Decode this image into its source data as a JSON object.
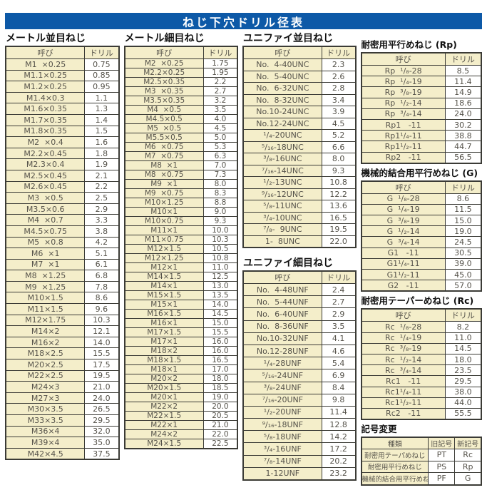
{
  "page_title": "ねじ下穴ドリル径表",
  "colors": {
    "title_bg": "#0d59a7",
    "title_text": "#ffffff",
    "cell_beige": "#f4eeca",
    "border": "#3b3b36"
  },
  "sections": {
    "metric_coarse": {
      "title": "メートル並目ねじ",
      "headers": [
        "呼び",
        "ドリル"
      ],
      "rows": [
        [
          "M1  ×0.25",
          "0.75"
        ],
        [
          "M1.1×0.25",
          "0.85"
        ],
        [
          "M1.2×0.25",
          "0.95"
        ],
        [
          "M1.4×0.3",
          "1.1"
        ],
        [
          "M1.6×0.35",
          "1.3"
        ],
        [
          "M1.7×0.35",
          "1.4"
        ],
        [
          "M1.8×0.35",
          "1.5"
        ],
        [
          "M2  ×0.4",
          "1.6"
        ],
        [
          "M2.2×0.45",
          "1.8"
        ],
        [
          "M2.3×0.4",
          "1.9"
        ],
        [
          "M2.5×0.45",
          "2.1"
        ],
        [
          "M2.6×0.45",
          "2.2"
        ],
        [
          "M3  ×0.5",
          "2.5"
        ],
        [
          "M3.5×0.6",
          "2.9"
        ],
        [
          "M4  ×0.7",
          "3.3"
        ],
        [
          "M4.5×0.75",
          "3.8"
        ],
        [
          "M5  ×0.8",
          "4.2"
        ],
        [
          "M6  ×1",
          "5.1"
        ],
        [
          "M7  ×1",
          "6.1"
        ],
        [
          "M8  ×1.25",
          "6.8"
        ],
        [
          "M9  ×1.25",
          "7.8"
        ],
        [
          "M10×1.5",
          "8.6"
        ],
        [
          "M11×1.5",
          "9.6"
        ],
        [
          "M12×1.75",
          "10.3"
        ],
        [
          "M14×2",
          "12.1"
        ],
        [
          "M16×2",
          "14.0"
        ],
        [
          "M18×2.5",
          "15.5"
        ],
        [
          "M20×2.5",
          "17.5"
        ],
        [
          "M22×2.5",
          "19.5"
        ],
        [
          "M24×3",
          "21.0"
        ],
        [
          "M27×3",
          "24.0"
        ],
        [
          "M30×3.5",
          "26.5"
        ],
        [
          "M33×3.5",
          "29.5"
        ],
        [
          "M36×4",
          "32.0"
        ],
        [
          "M39×4",
          "35.0"
        ],
        [
          "M42×4.5",
          "37.5"
        ]
      ]
    },
    "metric_fine": {
      "title": "メートル細目ねじ",
      "headers": [
        "呼び",
        "ドリル"
      ],
      "rows": [
        [
          "M2  ×0.25",
          "1.75"
        ],
        [
          "M2.2×0.25",
          "1.95"
        ],
        [
          "M2.5×0.35",
          "2.2"
        ],
        [
          "M3  ×0.35",
          "2.7"
        ],
        [
          "M3.5×0.35",
          "3.2"
        ],
        [
          "M4  ×0.5",
          "3.5"
        ],
        [
          "M4.5×0.5",
          "4.0"
        ],
        [
          "M5  ×0.5",
          "4.5"
        ],
        [
          "M5.5×0.5",
          "5.0"
        ],
        [
          "M6  ×0.75",
          "5.3"
        ],
        [
          "M7  ×0.75",
          "6.3"
        ],
        [
          "M8  ×1",
          "7.0"
        ],
        [
          "M8  ×0.75",
          "7.3"
        ],
        [
          "M9  ×1",
          "8.0"
        ],
        [
          "M9  ×0.75",
          "8.3"
        ],
        [
          "M10×1.25",
          "8.8"
        ],
        [
          "M10×1",
          "9.0"
        ],
        [
          "M10×0.75",
          "9.3"
        ],
        [
          "M11×1",
          "10.0"
        ],
        [
          "M11×0.75",
          "10.3"
        ],
        [
          "M12×1.5",
          "10.5"
        ],
        [
          "M12×1.25",
          "10.8"
        ],
        [
          "M12×1",
          "11.0"
        ],
        [
          "M14×1.5",
          "12.5"
        ],
        [
          "M14×1",
          "13.0"
        ],
        [
          "M15×1.5",
          "13.5"
        ],
        [
          "M15×1",
          "14.0"
        ],
        [
          "M16×1.5",
          "14.5"
        ],
        [
          "M16×1",
          "15.0"
        ],
        [
          "M17×1.5",
          "15.5"
        ],
        [
          "M17×1",
          "16.0"
        ],
        [
          "M18×2",
          "16.0"
        ],
        [
          "M18×1.5",
          "16.5"
        ],
        [
          "M18×1",
          "17.0"
        ],
        [
          "M20×2",
          "18.0"
        ],
        [
          "M20×1.5",
          "18.5"
        ],
        [
          "M20×1",
          "19.0"
        ],
        [
          "M22×2",
          "20.0"
        ],
        [
          "M22×1.5",
          "20.5"
        ],
        [
          "M22×1",
          "21.0"
        ],
        [
          "M24×2",
          "22.0"
        ],
        [
          "M24×1.5",
          "22.5"
        ]
      ]
    },
    "unified_coarse": {
      "title": "ユニファイ並目ねじ",
      "headers": [
        "呼び",
        "ドリル"
      ],
      "rows": [
        [
          "No.  4-40UNC",
          "2.3"
        ],
        [
          "No.  5-40UNC",
          "2.6"
        ],
        [
          "No.  6-32UNC",
          "2.8"
        ],
        [
          "No.  8-32UNC",
          "3.4"
        ],
        [
          "No.10-24UNC",
          "3.9"
        ],
        [
          "No.12-24UNC",
          "4.5"
        ],
        [
          "¹/₄-20UNC",
          "5.2"
        ],
        [
          "⁵/₁₆-18UNC",
          "6.6"
        ],
        [
          "³/₈-16UNC",
          "8.0"
        ],
        [
          "⁷/₁₆-14UNC",
          "9.3"
        ],
        [
          "¹/₂-13UNC",
          "10.8"
        ],
        [
          "⁹/₁₆-12UNC",
          "12.2"
        ],
        [
          "⁵/₈-11UNC",
          "13.6"
        ],
        [
          "³/₄-10UNC",
          "16.5"
        ],
        [
          "⁷/₈-  9UNC",
          "19.5"
        ],
        [
          "1-  8UNC",
          "22.0"
        ]
      ]
    },
    "unified_fine": {
      "title": "ユニファイ細目ねじ",
      "headers": [
        "呼び",
        "ドリル"
      ],
      "rows": [
        [
          "No.  4-48UNF",
          "2.4"
        ],
        [
          "No.  5-44UNF",
          "2.7"
        ],
        [
          "No.  6-40UNF",
          "2.9"
        ],
        [
          "No.  8-36UNF",
          "3.5"
        ],
        [
          "No.10-32UNF",
          "4.1"
        ],
        [
          "No.12-28UNF",
          "4.6"
        ],
        [
          "¹/₄-28UNF",
          "5.4"
        ],
        [
          "⁵/₁₆-24UNF",
          "6.9"
        ],
        [
          "³/₈-24UNF",
          "8.4"
        ],
        [
          "⁷/₁₆-20UNF",
          "9.8"
        ],
        [
          "¹/₂-20UNF",
          "11.4"
        ],
        [
          "⁹/₁₆-18UNF",
          "12.8"
        ],
        [
          "⁵/₈-18UNF",
          "14.2"
        ],
        [
          "³/₄-16UNF",
          "17.2"
        ],
        [
          "⁷/₈-14UNF",
          "20.2"
        ],
        [
          "1-12UNF",
          "23.2"
        ]
      ]
    },
    "rp": {
      "title": "耐密用平行めねじ (Rp)",
      "headers": [
        "呼び",
        "ドリル"
      ],
      "rows": [
        [
          "Rp  ¹/₈-28",
          "8.5"
        ],
        [
          "Rp  ¹/₄-19",
          "11.4"
        ],
        [
          "Rp  ³/₈-19",
          "14.9"
        ],
        [
          "Rp  ¹/₂-14",
          "18.6"
        ],
        [
          "Rp  ³/₄-14",
          "24.0"
        ],
        [
          "Rp1   -11",
          "30.2"
        ],
        [
          "Rp1¹/₄-11",
          "38.8"
        ],
        [
          "Rp1¹/₂-11",
          "44.7"
        ],
        [
          "Rp2   -11",
          "56.5"
        ]
      ]
    },
    "g": {
      "title": "機械的結合用平行めねじ (G)",
      "headers": [
        "呼び",
        "ドリル"
      ],
      "rows": [
        [
          "G  ¹/₈-28",
          "8.6"
        ],
        [
          "G  ¹/₄-19",
          "11.5"
        ],
        [
          "G  ³/₈-19",
          "15.0"
        ],
        [
          "G  ¹/₂-14",
          "19.0"
        ],
        [
          "G  ³/₄-14",
          "24.5"
        ],
        [
          "G1   -11",
          "30.5"
        ],
        [
          "G1¹/₄-11",
          "39.0"
        ],
        [
          "G1¹/₂-11",
          "45.0"
        ],
        [
          "G2   -11",
          "57.0"
        ]
      ]
    },
    "rc": {
      "title": "耐密用テーパーめねじ (Rc)",
      "headers": [
        "呼び",
        "ドリル"
      ],
      "rows": [
        [
          "Rc  ¹/₈-28",
          "8.2"
        ],
        [
          "Rc  ¹/₄-19",
          "11.0"
        ],
        [
          "Rc  ³/₈-19",
          "14.5"
        ],
        [
          "Rc  ¹/₂-14",
          "18.0"
        ],
        [
          "Rc  ³/₄-14",
          "23.5"
        ],
        [
          "Rc1   -11",
          "29.5"
        ],
        [
          "Rc1¹/₄-11",
          "38.0"
        ],
        [
          "Rc1¹/₂-11",
          "44.0"
        ],
        [
          "Rc2   -11",
          "55.5"
        ]
      ]
    },
    "symbol_change": {
      "title": "記号変更",
      "headers": [
        "種類",
        "旧記号",
        "新記号"
      ],
      "rows": [
        [
          "耐密用テーパめねじ",
          "PT",
          "Rc"
        ],
        [
          "耐密用平行めねじ",
          "PS",
          "Rp"
        ],
        [
          "機械的結合用平行めねじ",
          "PF",
          "G"
        ]
      ]
    }
  }
}
